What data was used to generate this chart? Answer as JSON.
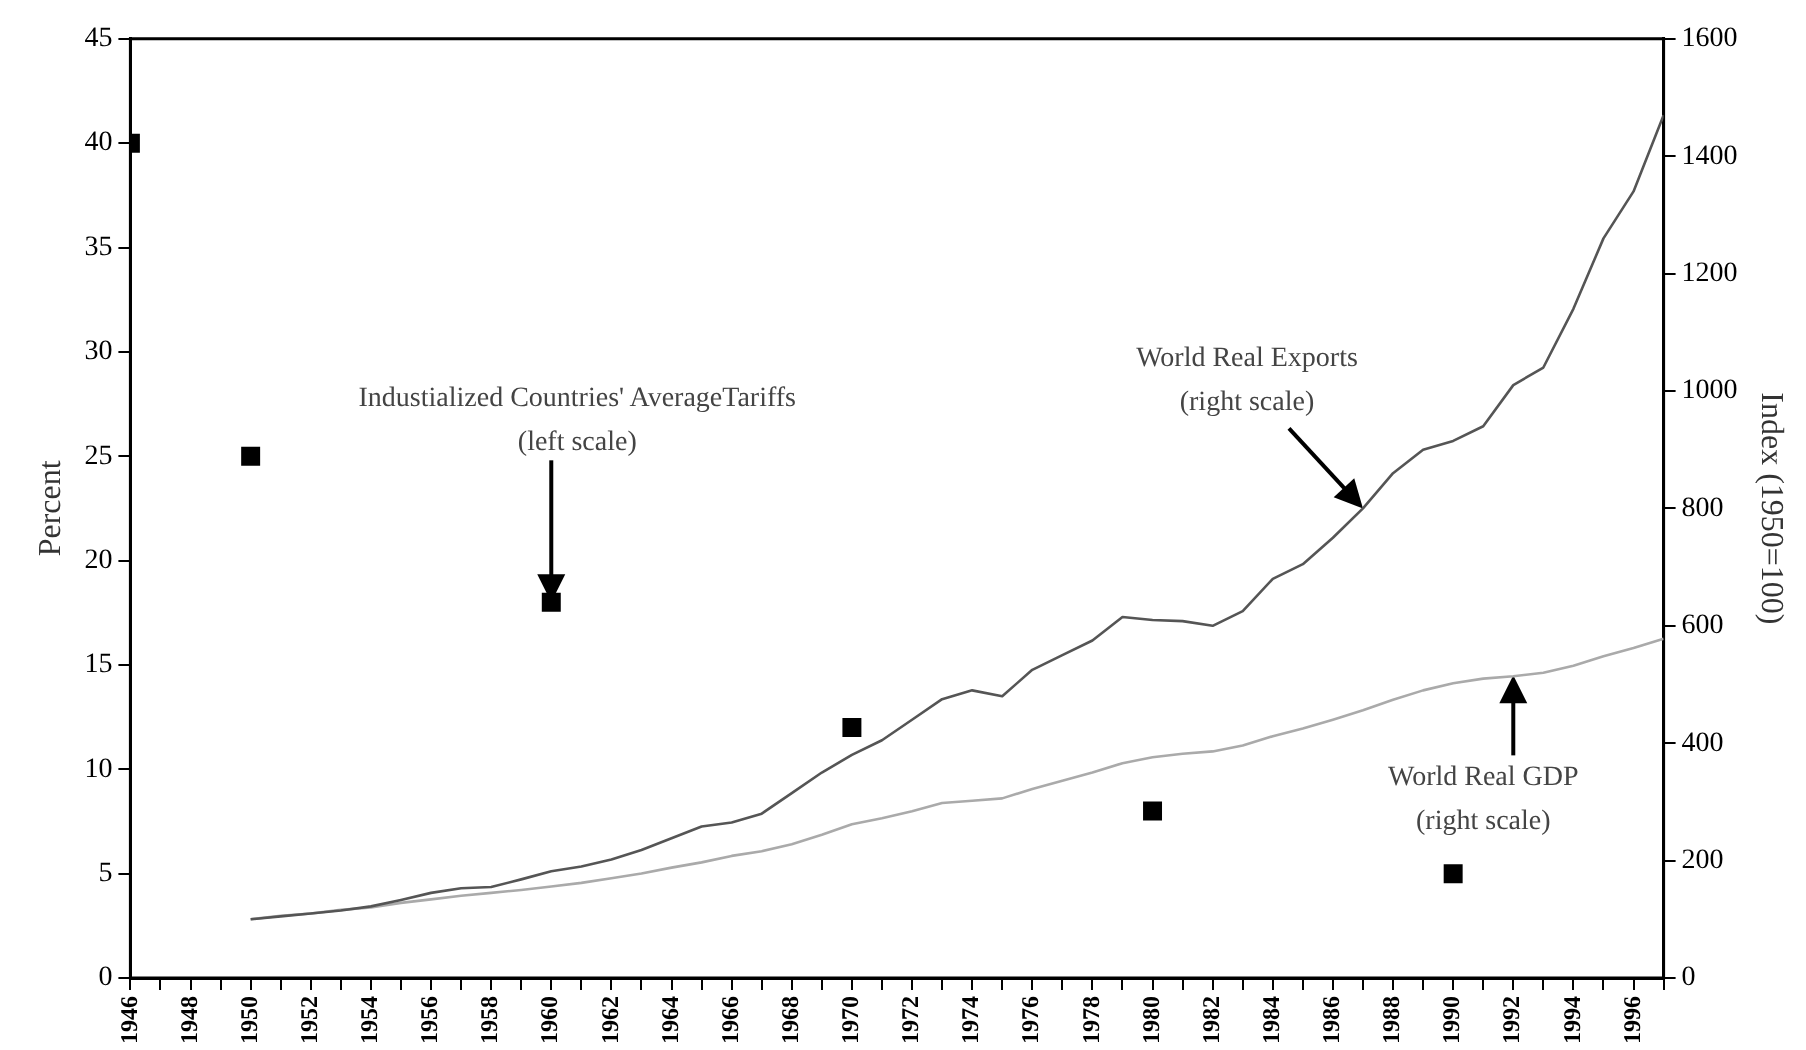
{
  "chart_data": {
    "type": "line",
    "ylabel": "Percent",
    "y2label": "Index (1950=100)",
    "xlim": [
      1946,
      1997
    ],
    "xticks": [
      1946,
      {
        "value": 1947,
        "label": null
      },
      1948,
      {
        "value": 1949,
        "label": null
      },
      1950,
      {
        "value": 1951,
        "label": null
      },
      1952,
      {
        "value": 1953,
        "label": null
      },
      1954,
      {
        "value": 1955,
        "label": null
      },
      1956,
      {
        "value": 1957,
        "label": null
      },
      1958,
      {
        "value": 1959,
        "label": null
      },
      1960,
      {
        "value": 1961,
        "label": null
      },
      1962,
      {
        "value": 1963,
        "label": null
      },
      1964,
      {
        "value": 1965,
        "label": null
      },
      1966,
      {
        "value": 1967,
        "label": null
      },
      1968,
      {
        "value": 1969,
        "label": null
      },
      1970,
      {
        "value": 1971,
        "label": null
      },
      1972,
      {
        "value": 1973,
        "label": null
      },
      1974,
      {
        "value": 1975,
        "label": null
      },
      1976,
      {
        "value": 1977,
        "label": null
      },
      1978,
      {
        "value": 1979,
        "label": null
      },
      1980,
      {
        "value": 1981,
        "label": null
      },
      1982,
      {
        "value": 1983,
        "label": null
      },
      1984,
      {
        "value": 1985,
        "label": null
      },
      1986,
      {
        "value": 1987,
        "label": null
      },
      1988,
      {
        "value": 1989,
        "label": null
      },
      1990,
      {
        "value": 1991,
        "label": null
      },
      1992,
      {
        "value": 1993,
        "label": null
      },
      1994,
      {
        "value": 1995,
        "label": null
      },
      1996,
      {
        "value": 1997,
        "label": null
      }
    ],
    "ylim": [
      0,
      45
    ],
    "yticks": [
      0,
      5,
      10,
      15,
      20,
      25,
      30,
      35,
      40,
      45
    ],
    "y2lim": [
      0,
      1600
    ],
    "y2ticks": [
      0,
      200,
      400,
      600,
      800,
      1000,
      1200,
      1400,
      1600
    ],
    "grid": false,
    "legend": false,
    "series": [
      {
        "type": "scatter",
        "marker": "square",
        "color": "#000000",
        "x": [
          1946,
          1950,
          1960,
          1970,
          1980,
          1990
        ],
        "values": [
          40,
          25,
          18,
          12,
          8,
          5
        ]
      },
      {
        "type": "line",
        "axis": "y2",
        "marker": "none",
        "line_style": "solid",
        "color": "#555555",
        "x": [
          1950,
          1951,
          1952,
          1953,
          1954,
          1955,
          1956,
          1957,
          1958,
          1959,
          1960,
          1961,
          1962,
          1963,
          1964,
          1965,
          1966,
          1967,
          1968,
          1969,
          1970,
          1971,
          1972,
          1973,
          1974,
          1975,
          1976,
          1977,
          1978,
          1979,
          1980,
          1981,
          1982,
          1983,
          1984,
          1985,
          1986,
          1987,
          1988,
          1989,
          1990,
          1991,
          1992,
          1993,
          1994,
          1995,
          1996,
          1997
        ],
        "values": [
          100,
          105,
          110,
          115,
          122,
          133,
          145,
          153,
          155,
          168,
          182,
          190,
          202,
          218,
          238,
          258,
          265,
          280,
          315,
          350,
          380,
          405,
          440,
          475,
          490,
          480,
          525,
          550,
          575,
          615,
          610,
          608,
          600,
          625,
          680,
          705,
          750,
          800,
          860,
          900,
          915,
          940,
          1010,
          1040,
          1140,
          1260,
          1340,
          1470
        ]
      },
      {
        "type": "line",
        "axis": "y2",
        "marker": "none",
        "line_style": "solid",
        "color": "#aaaaaa",
        "x": [
          1950,
          1951,
          1952,
          1953,
          1954,
          1955,
          1956,
          1957,
          1958,
          1959,
          1960,
          1961,
          1962,
          1963,
          1964,
          1965,
          1966,
          1967,
          1968,
          1969,
          1970,
          1971,
          1972,
          1973,
          1974,
          1975,
          1976,
          1977,
          1978,
          1979,
          1980,
          1981,
          1982,
          1983,
          1984,
          1985,
          1986,
          1987,
          1988,
          1989,
          1990,
          1991,
          1992,
          1993,
          1994,
          1995,
          1996,
          1997
        ],
        "values": [
          100,
          106,
          110,
          116,
          120,
          128,
          134,
          140,
          145,
          150,
          156,
          162,
          170,
          178,
          188,
          197,
          208,
          216,
          228,
          244,
          262,
          272,
          284,
          298,
          302,
          306,
          322,
          336,
          350,
          366,
          376,
          382,
          386,
          396,
          412,
          425,
          440,
          456,
          474,
          490,
          502,
          510,
          514,
          520,
          532,
          548,
          562,
          578
        ]
      }
    ],
    "annotations": [
      {
        "text": "Industialized Countries' AverageTariffs\n(left scale)",
        "x": 1960,
        "y": 18
      },
      {
        "text": "World Real Exports\n(right scale)",
        "x": 1987,
        "y": 22.5
      },
      {
        "text": "World Real GDP\n(right scale)",
        "x": 1992,
        "y": 14.5
      }
    ]
  }
}
